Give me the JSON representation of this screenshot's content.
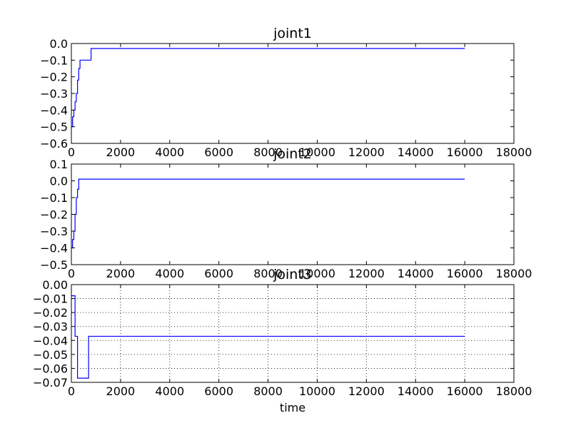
{
  "chart_data": [
    {
      "type": "line",
      "title": "joint1",
      "xlabel": "",
      "ylabel": "",
      "xlim": [
        0,
        18000
      ],
      "ylim": [
        -0.6,
        0.0
      ],
      "xticks": [
        0,
        2000,
        4000,
        6000,
        8000,
        10000,
        12000,
        14000,
        16000,
        18000
      ],
      "yticks": [
        -0.6,
        -0.5,
        -0.4,
        -0.3,
        -0.2,
        -0.1,
        0.0
      ],
      "xtick_labels": [
        "0",
        "2000",
        "4000",
        "6000",
        "8000",
        "10000",
        "12000",
        "14000",
        "16000",
        "18000"
      ],
      "ytick_labels": [
        "−0.6",
        "−0.5",
        "−0.4",
        "−0.3",
        "−0.2",
        "−0.1",
        "0.0"
      ],
      "grid": false,
      "color": "#0000ff",
      "step": true,
      "series": [
        {
          "x": [
            0,
            50,
            100,
            150,
            200,
            250,
            300,
            350,
            400,
            800,
            16000
          ],
          "y": [
            -0.5,
            -0.44,
            -0.4,
            -0.35,
            -0.3,
            -0.22,
            -0.15,
            -0.1,
            -0.1,
            -0.03,
            -0.03
          ]
        }
      ]
    },
    {
      "type": "line",
      "title": "joint2",
      "xlabel": "",
      "ylabel": "",
      "xlim": [
        0,
        18000
      ],
      "ylim": [
        -0.5,
        0.1
      ],
      "xticks": [
        0,
        2000,
        4000,
        6000,
        8000,
        10000,
        12000,
        14000,
        16000,
        18000
      ],
      "yticks": [
        -0.5,
        -0.4,
        -0.3,
        -0.2,
        -0.1,
        0.0,
        0.1
      ],
      "xtick_labels": [
        "0",
        "2000",
        "4000",
        "6000",
        "8000",
        "10000",
        "12000",
        "14000",
        "16000",
        "18000"
      ],
      "ytick_labels": [
        "−0.5",
        "−0.4",
        "−0.3",
        "−0.2",
        "−0.1",
        "0.0",
        "0.1"
      ],
      "grid": false,
      "color": "#0000ff",
      "step": true,
      "series": [
        {
          "x": [
            0,
            50,
            100,
            150,
            200,
            250,
            300,
            16000
          ],
          "y": [
            -0.4,
            -0.35,
            -0.3,
            -0.2,
            -0.1,
            -0.05,
            0.01,
            0.01
          ]
        }
      ]
    },
    {
      "type": "line",
      "title": "joint3",
      "xlabel": "time",
      "ylabel": "",
      "xlim": [
        0,
        18000
      ],
      "ylim": [
        -0.07,
        0.0
      ],
      "xticks": [
        0,
        2000,
        4000,
        6000,
        8000,
        10000,
        12000,
        14000,
        16000,
        18000
      ],
      "yticks": [
        -0.07,
        -0.06,
        -0.05,
        -0.04,
        -0.03,
        -0.02,
        -0.01,
        0.0
      ],
      "xtick_labels": [
        "0",
        "2000",
        "4000",
        "6000",
        "8000",
        "10000",
        "12000",
        "14000",
        "16000",
        "18000"
      ],
      "ytick_labels": [
        "−0.07",
        "−0.06",
        "−0.05",
        "−0.04",
        "−0.03",
        "−0.02",
        "−0.01",
        "0.00"
      ],
      "grid": true,
      "color": "#0000ff",
      "step": true,
      "series": [
        {
          "x": [
            0,
            150,
            200,
            250,
            700,
            16000
          ],
          "y": [
            -0.008,
            -0.037,
            -0.037,
            -0.067,
            -0.037,
            -0.037
          ]
        }
      ]
    }
  ]
}
